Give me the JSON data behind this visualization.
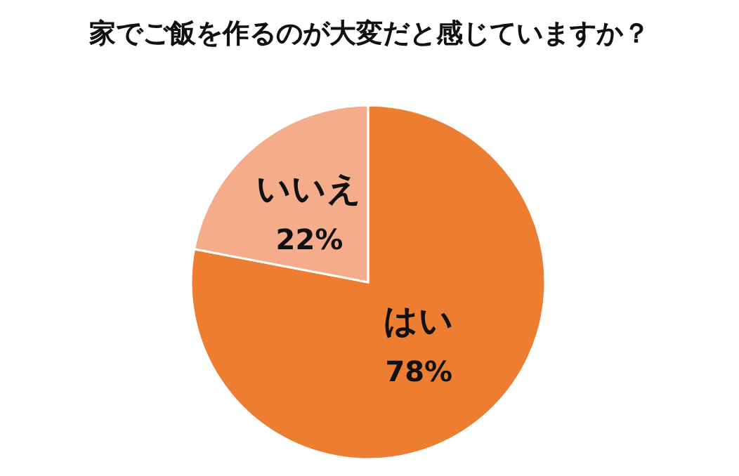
{
  "chart_data": {
    "type": "pie",
    "title": "家でご飯を作るのが大変だと感じていますか？",
    "categories": [
      "はい",
      "いいえ"
    ],
    "values": [
      78,
      22
    ],
    "colors": [
      "#ed7d31",
      "#f4ac8a"
    ],
    "value_labels": [
      "78%",
      "22%"
    ]
  }
}
